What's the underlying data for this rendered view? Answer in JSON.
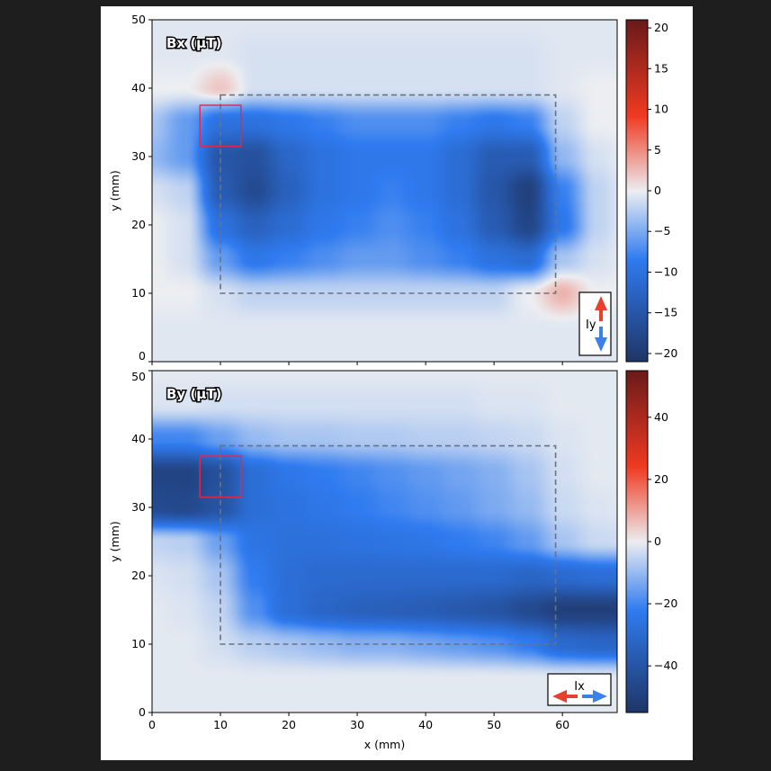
{
  "chart_data": [
    {
      "type": "heatmap",
      "title": "Bx (µT)",
      "xlabel": "",
      "ylabel": "y (mm)",
      "xlim": [
        0,
        68
      ],
      "ylim": [
        0,
        50
      ],
      "xticks": [
        0,
        10,
        20,
        30,
        40,
        50,
        60
      ],
      "yticks": [
        0,
        10,
        20,
        30,
        40,
        50
      ],
      "colorbar": {
        "range": [
          -21,
          21
        ],
        "ticks": [
          -20,
          -15,
          -10,
          -5,
          0,
          5,
          10,
          15,
          20
        ]
      },
      "grid_x": [
        0,
        5,
        10,
        15,
        20,
        25,
        30,
        35,
        40,
        45,
        50,
        55,
        60,
        65,
        70
      ],
      "grid_y": [
        50,
        45,
        40,
        35,
        30,
        25,
        20,
        15,
        10,
        5,
        0
      ],
      "values": [
        [
          -0.5,
          -0.5,
          -0.5,
          -0.5,
          -0.5,
          -0.5,
          -0.5,
          -0.5,
          -0.5,
          -0.5,
          -0.5,
          -0.5,
          -0.5,
          -0.5,
          -0.5
        ],
        [
          -0.5,
          -0.5,
          -0.5,
          -1,
          -1,
          -1,
          -1,
          -1,
          -1,
          -1,
          -1,
          -1,
          -0.5,
          -0.5,
          -0.5
        ],
        [
          0,
          0,
          2,
          -1,
          -1,
          -1,
          -1,
          -1,
          -1,
          -1,
          -1,
          -1,
          -0.5,
          0,
          0
        ],
        [
          -3,
          -6,
          -10,
          -10,
          -9,
          -8,
          -7,
          -7,
          -7,
          -8,
          -9,
          -8,
          -2,
          0,
          0
        ],
        [
          -4,
          -6,
          -15,
          -16,
          -12,
          -10,
          -9,
          -9,
          -9,
          -11,
          -14,
          -14,
          -4,
          -1,
          0
        ],
        [
          -1,
          -2,
          -14,
          -17,
          -13,
          -10,
          -9,
          -8,
          -9,
          -11,
          -15,
          -19,
          -8,
          -2,
          0
        ],
        [
          0,
          -1,
          -10,
          -13,
          -11,
          -9,
          -8,
          -7,
          -8,
          -10,
          -14,
          -18,
          -9,
          -2,
          0
        ],
        [
          0,
          -1,
          -6,
          -9,
          -8,
          -7,
          -6,
          -6,
          -7,
          -8,
          -10,
          -11,
          -3,
          -1,
          0
        ],
        [
          0,
          0,
          -1,
          -2,
          -2,
          -2,
          -2,
          -2,
          -2,
          -2,
          -2,
          0,
          3,
          0,
          0
        ],
        [
          -0.5,
          -0.5,
          -0.5,
          -0.5,
          -0.5,
          -0.5,
          -0.5,
          -0.5,
          -0.5,
          -0.5,
          -0.5,
          -0.5,
          -0.5,
          -0.5,
          -0.5
        ],
        [
          -0.5,
          -0.5,
          -0.5,
          -0.5,
          -0.5,
          -0.5,
          -0.5,
          -0.5,
          -0.5,
          -0.5,
          -0.5,
          -0.5,
          -0.5,
          -0.5,
          -0.5
        ]
      ],
      "legend": {
        "label": "Iy",
        "arrows": [
          "up-red",
          "down-blue"
        ],
        "placement": "bottom-right"
      }
    },
    {
      "type": "heatmap",
      "title": "By (µT)",
      "xlabel": "x (mm)",
      "ylabel": "y (mm)",
      "xlim": [
        0,
        68
      ],
      "ylim": [
        0,
        50
      ],
      "xticks": [
        0,
        10,
        20,
        30,
        40,
        50,
        60
      ],
      "yticks": [
        0,
        10,
        20,
        30,
        40,
        50
      ],
      "colorbar": {
        "range": [
          -55,
          55
        ],
        "ticks": [
          -40,
          -20,
          0,
          20,
          40
        ]
      },
      "grid_x": [
        0,
        5,
        10,
        15,
        20,
        25,
        30,
        35,
        40,
        45,
        50,
        55,
        60,
        65,
        70
      ],
      "grid_y": [
        50,
        45,
        40,
        35,
        30,
        25,
        20,
        15,
        10,
        5,
        0
      ],
      "values": [
        [
          -1,
          -1,
          -1,
          -1,
          -1,
          -1,
          -1,
          -1,
          -1,
          -1,
          -1,
          -1,
          -1,
          -1,
          -1
        ],
        [
          -2,
          -2,
          -3,
          -3,
          -3,
          -3,
          -3,
          -3,
          -3,
          -3,
          -2,
          -2,
          -1,
          -1,
          -1
        ],
        [
          -20,
          -20,
          -15,
          -10,
          -8,
          -8,
          -7,
          -7,
          -6,
          -6,
          -5,
          -4,
          -2,
          -1,
          -1
        ],
        [
          -48,
          -48,
          -42,
          -28,
          -24,
          -22,
          -20,
          -18,
          -16,
          -14,
          -12,
          -8,
          -3,
          -1,
          -1
        ],
        [
          -45,
          -46,
          -40,
          -28,
          -26,
          -24,
          -22,
          -20,
          -18,
          -16,
          -13,
          -10,
          -4,
          -2,
          -1
        ],
        [
          -5,
          -6,
          -15,
          -25,
          -27,
          -27,
          -26,
          -25,
          -24,
          -22,
          -20,
          -16,
          -8,
          -4,
          -3
        ],
        [
          -2,
          -3,
          -8,
          -22,
          -28,
          -30,
          -30,
          -30,
          -30,
          -30,
          -30,
          -32,
          -30,
          -28,
          -28
        ],
        [
          -1,
          -2,
          -5,
          -18,
          -28,
          -32,
          -34,
          -35,
          -36,
          -38,
          -40,
          -45,
          -50,
          -50,
          -50
        ],
        [
          -1,
          -1,
          -3,
          -6,
          -8,
          -10,
          -12,
          -12,
          -14,
          -16,
          -18,
          -22,
          -30,
          -32,
          -32
        ],
        [
          -1,
          -1,
          -1,
          -1,
          -1,
          -1,
          -1,
          -1,
          -1,
          -1,
          -1,
          -1,
          -1,
          -1,
          -1
        ],
        [
          -1,
          -1,
          -1,
          -1,
          -1,
          -1,
          -1,
          -1,
          -1,
          -1,
          -1,
          -1,
          -1,
          -1,
          -1
        ]
      ],
      "legend": {
        "label": "Ix",
        "arrows": [
          "left-red",
          "right-blue"
        ],
        "placement": "bottom-right"
      }
    }
  ],
  "overlays": {
    "dashed_rectangle_mm": {
      "x": [
        10,
        59
      ],
      "y": [
        10,
        39
      ],
      "color": "#6b7280"
    },
    "red_square_mm": {
      "x": [
        7,
        13
      ],
      "y": [
        31.5,
        37.5
      ],
      "color": "#e0284a"
    }
  },
  "colors": {
    "dark_blue": "#1f3566",
    "blue": "#2f7bf0",
    "neutral": "#eceef1",
    "red": "#f03a22",
    "dark_red": "#6b1a1a"
  }
}
